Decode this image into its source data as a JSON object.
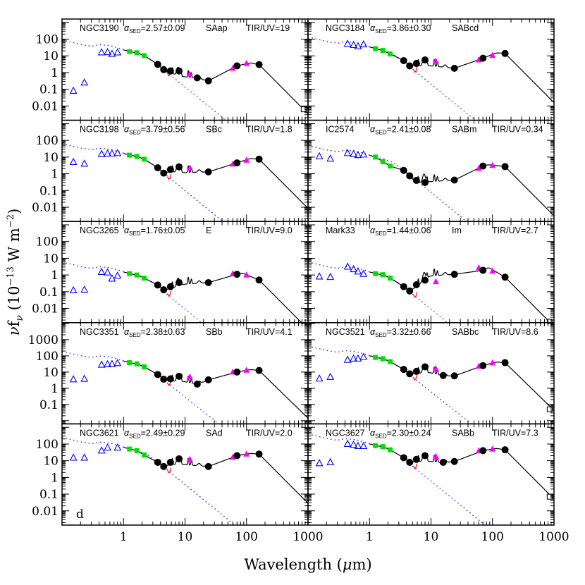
{
  "chart_data": {
    "type": "scatter",
    "layout": "5 rows x 2 columns, shared axes",
    "xlabel": {
      "text": "Wavelength (",
      "mu": "μ",
      "unit": "m)"
    },
    "ylabel": {
      "nu": "ν",
      "f": "f",
      "sub": "ν",
      "open": " (10",
      "exp1": "−13",
      "mid": " W m",
      "exp2": "−2",
      "close": ")"
    },
    "xscale": "log",
    "yscale": "log",
    "xlim": [
      0.1,
      1000
    ],
    "xticks": [
      {
        "v": 1,
        "label": "1"
      },
      {
        "v": 10,
        "label": "10"
      },
      {
        "v": 100,
        "label": "100"
      },
      {
        "v": 1000,
        "label": "1000"
      }
    ],
    "alpha_symbol": "α",
    "alpha_sub": "SED",
    "colors": {
      "uv_optical": "#0000ff",
      "nir": "#00e000",
      "spitzer": "#000000",
      "iras": "#ff00ff",
      "submm": "#000000",
      "model": "#000000",
      "stellar": "#0000ff",
      "model_alt": "#ff0000"
    },
    "marker_legend": {
      "uv_optical": "open-triangle",
      "nir": "filled-square",
      "spitzer": "filled-circle",
      "iras": "filled-triangle",
      "submm": "open-square",
      "model": "solid-line",
      "stellar": "dotted-line"
    },
    "rows": [
      {
        "ylim": [
          0.0014,
          1600
        ],
        "yticks": [
          {
            "v": 100,
            "label": "100"
          },
          {
            "v": 10,
            "label": "10"
          },
          {
            "v": 1,
            "label": "1"
          },
          {
            "v": 0.1,
            "label": "0.1"
          },
          {
            "v": 0.01,
            "label": "0.01"
          }
        ]
      },
      {
        "ylim": [
          0.0014,
          1600
        ],
        "yticks": [
          {
            "v": 100,
            "label": "100"
          },
          {
            "v": 10,
            "label": "10"
          },
          {
            "v": 1,
            "label": "1"
          },
          {
            "v": 0.1,
            "label": "0.1"
          },
          {
            "v": 0.01,
            "label": "0.01"
          }
        ]
      },
      {
        "ylim": [
          0.0014,
          1600
        ],
        "yticks": [
          {
            "v": 100,
            "label": "100"
          },
          {
            "v": 10,
            "label": "10"
          },
          {
            "v": 1,
            "label": "1"
          },
          {
            "v": 0.1,
            "label": "0.1"
          },
          {
            "v": 0.01,
            "label": "0.01"
          }
        ]
      },
      {
        "ylim": [
          0.0063,
          11200
        ],
        "yticks": [
          {
            "v": 1000,
            "label": "1000"
          },
          {
            "v": 100,
            "label": "100"
          },
          {
            "v": 10,
            "label": "10"
          },
          {
            "v": 1,
            "label": "1"
          },
          {
            "v": 0.1,
            "label": "0.1"
          }
        ]
      },
      {
        "ylim": [
          0.0014,
          1600
        ],
        "yticks": [
          {
            "v": 100,
            "label": "100"
          },
          {
            "v": 10,
            "label": "10"
          },
          {
            "v": 1,
            "label": "1"
          },
          {
            "v": 0.1,
            "label": "0.1"
          },
          {
            "v": 0.01,
            "label": "0.01"
          }
        ]
      }
    ],
    "panels": [
      {
        "name": "NGC3190",
        "alpha": "=2.57±0.09",
        "morph": "SAap",
        "tir_uv": "TIR/UV=19",
        "uv_optical": [
          [
            0.153,
            0.08
          ],
          [
            0.231,
            0.25
          ],
          [
            0.44,
            16
          ],
          [
            0.55,
            16.5
          ],
          [
            0.65,
            13
          ],
          [
            0.8,
            16
          ]
        ],
        "nir": [
          [
            1.25,
            18
          ],
          [
            1.65,
            15.4
          ],
          [
            2.17,
            10.3
          ]
        ],
        "spitzer": [
          [
            3.6,
            3.1
          ],
          [
            4.5,
            1.5
          ],
          [
            5.8,
            1.25
          ],
          [
            8.0,
            1.25
          ],
          [
            15.8,
            0.48
          ],
          [
            24,
            0.32
          ],
          [
            70,
            2.5
          ],
          [
            160,
            3.0
          ]
        ],
        "iras": [
          [
            12,
            0.8
          ],
          [
            60,
            1.8
          ],
          [
            100,
            3.5
          ]
        ],
        "submm": [
          [
            850,
            0.0063
          ]
        ]
      },
      {
        "name": "NGC3184",
        "alpha": "=3.86±0.30",
        "morph": "SABcd",
        "tir_uv": "",
        "uv_optical": [
          [
            0.44,
            52
          ],
          [
            0.55,
            44
          ],
          [
            0.65,
            37
          ],
          [
            0.8,
            48
          ]
        ],
        "nir": [
          [
            1.25,
            27
          ],
          [
            1.65,
            21
          ],
          [
            2.17,
            13
          ]
        ],
        "spitzer": [
          [
            3.6,
            5.2
          ],
          [
            4.5,
            2.5
          ],
          [
            5.8,
            3.5
          ],
          [
            8.0,
            5.7
          ],
          [
            24,
            1.8
          ],
          [
            70,
            7.2
          ],
          [
            160,
            14
          ]
        ],
        "iras": [
          [
            12,
            4.9
          ],
          [
            60,
            5.7
          ],
          [
            100,
            10.7
          ]
        ],
        "submm": []
      },
      {
        "name": "NGC3198",
        "alpha": "=3.79±0.56",
        "morph": "SBc",
        "tir_uv": "TIR/UV=1.8",
        "uv_optical": [
          [
            0.153,
            5
          ],
          [
            0.231,
            4
          ],
          [
            0.44,
            15
          ],
          [
            0.55,
            16
          ],
          [
            0.65,
            16
          ],
          [
            0.8,
            17
          ]
        ],
        "nir": [
          [
            1.25,
            13
          ],
          [
            1.65,
            11
          ],
          [
            2.17,
            7.5
          ]
        ],
        "spitzer": [
          [
            3.6,
            2.3
          ],
          [
            4.5,
            1.1
          ],
          [
            5.8,
            1.8
          ],
          [
            8.0,
            2.6
          ],
          [
            24,
            1.3
          ],
          [
            70,
            4.5
          ],
          [
            160,
            7.5
          ]
        ],
        "iras": [
          [
            12,
            2.2
          ],
          [
            60,
            3.8
          ],
          [
            100,
            6.5
          ]
        ],
        "submm": []
      },
      {
        "name": "IC2574",
        "alpha": "=2.41±0.08",
        "morph": "SABm",
        "tir_uv": "TIR/UV=0.34",
        "uv_optical": [
          [
            0.153,
            11
          ],
          [
            0.231,
            8
          ],
          [
            0.44,
            17
          ],
          [
            0.55,
            15
          ],
          [
            0.65,
            13
          ],
          [
            0.8,
            14
          ]
        ],
        "nir": [
          [
            1.25,
            10
          ],
          [
            1.65,
            5.3
          ],
          [
            2.17,
            2.9
          ]
        ],
        "spitzer": [
          [
            3.6,
            1.6
          ],
          [
            4.5,
            0.75
          ],
          [
            5.8,
            0.4
          ],
          [
            8.0,
            0.3
          ],
          [
            24,
            0.42
          ],
          [
            70,
            2.9
          ],
          [
            160,
            2.7
          ]
        ],
        "iras": [
          [
            60,
            2.1
          ],
          [
            100,
            3.2
          ]
        ],
        "submm": []
      },
      {
        "name": "NGC3265",
        "alpha": "=1.76±0.05",
        "morph": "E",
        "tir_uv": "TIR/UV=9.0",
        "uv_optical": [
          [
            0.153,
            0.12
          ],
          [
            0.231,
            0.13
          ],
          [
            0.44,
            1.5
          ],
          [
            0.55,
            1.4
          ],
          [
            0.65,
            0.6
          ],
          [
            0.8,
            0.9
          ]
        ],
        "nir": [
          [
            1.25,
            1.2
          ],
          [
            1.65,
            1.0
          ],
          [
            2.17,
            0.65
          ]
        ],
        "spitzer": [
          [
            3.6,
            0.25
          ],
          [
            4.5,
            0.13
          ],
          [
            5.8,
            0.2
          ],
          [
            8.0,
            0.35
          ],
          [
            24,
            0.35
          ],
          [
            70,
            1.1
          ],
          [
            160,
            0.5
          ]
        ],
        "iras": [
          [
            60,
            1.2
          ],
          [
            100,
            1.0
          ]
        ],
        "submm": []
      },
      {
        "name": "Mark33",
        "alpha": "=1.44±0.06",
        "morph": "Im",
        "tir_uv": "TIR/UV=2.7",
        "uv_optical": [
          [
            0.153,
            0.8
          ],
          [
            0.231,
            0.75
          ],
          [
            0.44,
            3.1
          ],
          [
            0.55,
            2.2
          ],
          [
            0.65,
            1.6
          ],
          [
            0.8,
            1.15
          ]
        ],
        "nir": [
          [
            1.25,
            1.2
          ],
          [
            1.65,
            1.05
          ],
          [
            2.17,
            0.65
          ]
        ],
        "spitzer": [
          [
            3.6,
            0.2
          ],
          [
            4.5,
            0.11
          ],
          [
            5.8,
            0.26
          ],
          [
            8.0,
            0.49
          ],
          [
            24,
            1.1
          ],
          [
            70,
            1.9
          ],
          [
            160,
            0.74
          ]
        ],
        "iras": [
          [
            12,
            0.4
          ],
          [
            60,
            2.7
          ],
          [
            100,
            1.7
          ]
        ],
        "submm": [
          [
            850,
            0.0016
          ]
        ]
      },
      {
        "name": "NGC3351",
        "alpha": "=2.38±0.63",
        "morph": "SBb",
        "tir_uv": "TIR/UV=4.1",
        "uv_optical": [
          [
            0.153,
            3.5
          ],
          [
            0.231,
            3.8
          ],
          [
            0.44,
            28
          ],
          [
            0.55,
            30
          ],
          [
            0.65,
            31
          ],
          [
            0.8,
            35
          ]
        ],
        "nir": [
          [
            1.25,
            38
          ],
          [
            1.65,
            32
          ],
          [
            2.17,
            21
          ]
        ],
        "spitzer": [
          [
            3.6,
            7
          ],
          [
            4.5,
            3.6
          ],
          [
            5.8,
            3.8
          ],
          [
            8.0,
            5.5
          ],
          [
            15.8,
            1.8
          ],
          [
            24,
            3.3
          ],
          [
            70,
            10
          ],
          [
            160,
            12.5
          ]
        ],
        "iras": [
          [
            12,
            5
          ],
          [
            60,
            10
          ],
          [
            100,
            13
          ]
        ],
        "submm": []
      },
      {
        "name": "NGC3521",
        "alpha": "=3.32±0.66",
        "morph": "SABbc",
        "tir_uv": "TIR/UV=8.6",
        "uv_optical": [
          [
            0.153,
            3.9
          ],
          [
            0.231,
            5
          ],
          [
            0.44,
            56
          ],
          [
            0.55,
            67
          ],
          [
            0.65,
            67
          ],
          [
            0.8,
            85
          ]
        ],
        "nir": [
          [
            1.25,
            80
          ],
          [
            1.65,
            67
          ],
          [
            2.17,
            44
          ]
        ],
        "spitzer": [
          [
            3.6,
            14.5
          ],
          [
            4.5,
            7.8
          ],
          [
            5.8,
            11
          ],
          [
            8.0,
            21
          ],
          [
            15.8,
            6.1
          ],
          [
            24,
            5.8
          ],
          [
            70,
            25
          ],
          [
            160,
            38
          ]
        ],
        "iras": [
          [
            12,
            16
          ],
          [
            60,
            23
          ],
          [
            100,
            37
          ]
        ],
        "submm": [
          [
            850,
            0.05
          ]
        ]
      },
      {
        "name": "NGC3621",
        "alpha": "=2.49±0.29",
        "morph": "SAd",
        "tir_uv": "TIR/UV=2.0",
        "corner": "d",
        "uv_optical": [
          [
            0.153,
            15
          ],
          [
            0.231,
            15
          ],
          [
            0.44,
            40
          ],
          [
            0.55,
            60
          ],
          [
            0.8,
            60
          ]
        ],
        "nir": [
          [
            1.25,
            50
          ],
          [
            1.65,
            40
          ],
          [
            2.17,
            22
          ]
        ],
        "spitzer": [
          [
            3.6,
            8
          ],
          [
            4.5,
            4.5
          ],
          [
            5.8,
            8
          ],
          [
            8.0,
            13
          ],
          [
            24,
            4.5
          ],
          [
            70,
            20
          ],
          [
            160,
            25
          ]
        ],
        "iras": [
          [
            12,
            12
          ],
          [
            60,
            16
          ],
          [
            100,
            25
          ]
        ],
        "submm": []
      },
      {
        "name": "NGC3627",
        "alpha": "=2.30±0.24",
        "morph": "SABb",
        "tir_uv": "TIR/UV=7.3",
        "uv_optical": [
          [
            0.153,
            7
          ],
          [
            0.231,
            8
          ],
          [
            0.44,
            100
          ],
          [
            0.55,
            90
          ],
          [
            0.65,
            75
          ],
          [
            0.8,
            75
          ]
        ],
        "nir": [
          [
            1.25,
            80
          ],
          [
            1.65,
            70
          ],
          [
            2.17,
            45
          ]
        ],
        "spitzer": [
          [
            3.6,
            15
          ],
          [
            4.5,
            8
          ],
          [
            5.8,
            12
          ],
          [
            8.0,
            20
          ],
          [
            15.8,
            8
          ],
          [
            24,
            9
          ],
          [
            70,
            40
          ],
          [
            160,
            45
          ]
        ],
        "iras": [
          [
            12,
            18
          ],
          [
            60,
            40
          ],
          [
            100,
            50
          ]
        ],
        "submm": [
          [
            850,
            0.07
          ]
        ]
      }
    ]
  }
}
